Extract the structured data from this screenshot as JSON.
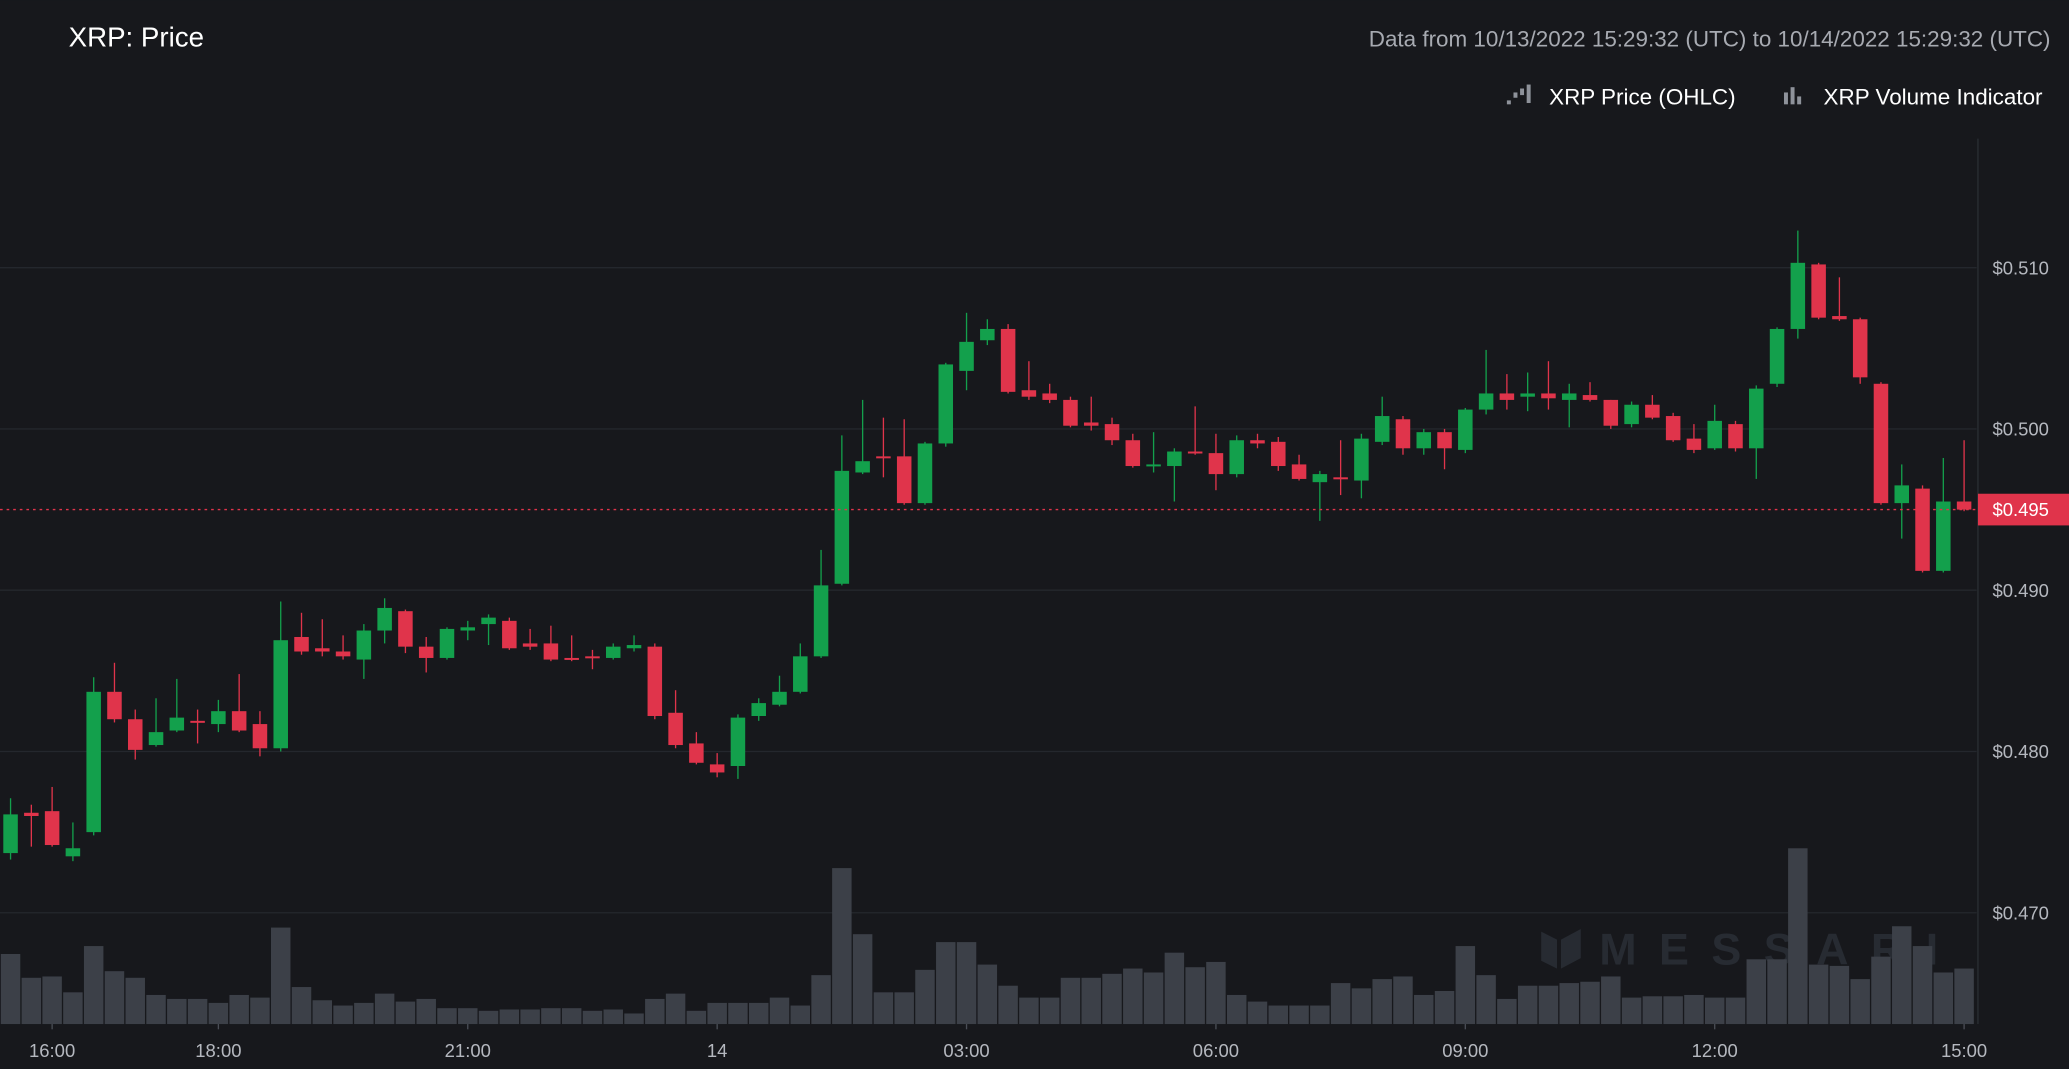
{
  "chart_data": {
    "type": "candlestick",
    "title": "XRP: Price",
    "subtitle": "Data from 10/13/2022 15:29:32 (UTC) to 10/14/2022 15:29:32 (UTC)",
    "watermark": "MESSARI",
    "grid": true,
    "x": [
      "15:30",
      "15:45",
      "16:00",
      "16:15",
      "16:30",
      "16:45",
      "17:00",
      "17:15",
      "17:30",
      "17:45",
      "18:00",
      "18:15",
      "18:30",
      "18:45",
      "19:00",
      "19:15",
      "19:30",
      "19:45",
      "20:00",
      "20:15",
      "20:30",
      "20:45",
      "21:00",
      "21:15",
      "21:30",
      "21:45",
      "22:00",
      "22:15",
      "22:30",
      "22:45",
      "23:00",
      "23:15",
      "23:30",
      "23:45",
      "00:00",
      "00:15",
      "00:30",
      "00:45",
      "01:00",
      "01:15",
      "01:30",
      "01:45",
      "02:00",
      "02:15",
      "02:30",
      "02:45",
      "03:00",
      "03:15",
      "03:30",
      "03:45",
      "04:00",
      "04:15",
      "04:30",
      "04:45",
      "05:00",
      "05:15",
      "05:30",
      "05:45",
      "06:00",
      "06:15",
      "06:30",
      "06:45",
      "07:00",
      "07:15",
      "07:30",
      "07:45",
      "08:00",
      "08:15",
      "08:30",
      "08:45",
      "09:00",
      "09:15",
      "09:30",
      "09:45",
      "10:00",
      "10:15",
      "10:30",
      "10:45",
      "11:00",
      "11:15",
      "11:30",
      "11:45",
      "12:00",
      "12:15",
      "12:30",
      "12:45",
      "13:00",
      "13:15",
      "13:30",
      "13:45",
      "14:00",
      "14:15",
      "14:30",
      "14:45",
      "15:00"
    ],
    "xticks": [
      {
        "value": "16:00",
        "label": "16:00"
      },
      {
        "value": "18:00",
        "label": "18:00"
      },
      {
        "value": "21:00",
        "label": "21:00"
      },
      {
        "value": "00:00",
        "label": "14"
      },
      {
        "value": "03:00",
        "label": "03:00"
      },
      {
        "value": "06:00",
        "label": "06:00"
      },
      {
        "value": "09:00",
        "label": "09:00"
      },
      {
        "value": "12:00",
        "label": "12:00"
      },
      {
        "value": "15:00",
        "label": "15:00"
      }
    ],
    "ylim": [
      0.4631,
      0.518
    ],
    "yticks": [
      {
        "value": 0.47,
        "label": "$0.470"
      },
      {
        "value": 0.48,
        "label": "$0.480"
      },
      {
        "value": 0.49,
        "label": "$0.490"
      },
      {
        "value": 0.5,
        "label": "$0.500"
      },
      {
        "value": 0.51,
        "label": "$0.510"
      }
    ],
    "y2lim": [
      0,
      670
    ],
    "last_price": {
      "value": 0.495,
      "label": "$0.495"
    },
    "series": [
      {
        "name": "XRP Price (OHLC)",
        "up_color": "#13a04c",
        "down_color": "#e0344b",
        "open": [
          0.4737,
          0.4762,
          0.4763,
          0.4735,
          0.475,
          0.4837,
          0.482,
          0.4804,
          0.4813,
          0.4819,
          0.4817,
          0.4825,
          0.4817,
          0.4802,
          0.4871,
          0.4864,
          0.4862,
          0.4857,
          0.4875,
          0.4887,
          0.4865,
          0.4858,
          0.4875,
          0.4879,
          0.4881,
          0.4867,
          0.4867,
          0.4858,
          0.4859,
          0.4858,
          0.4864,
          0.4865,
          0.4824,
          0.4805,
          0.4792,
          0.4791,
          0.4822,
          0.4829,
          0.4837,
          0.4859,
          0.4904,
          0.4973,
          0.4983,
          0.4983,
          0.4954,
          0.4991,
          0.5036,
          0.5055,
          0.5062,
          0.5024,
          0.5022,
          0.5018,
          0.5004,
          0.5003,
          0.4993,
          0.4977,
          0.4977,
          0.4986,
          0.4985,
          0.4972,
          0.4993,
          0.4992,
          0.4978,
          0.4967,
          0.497,
          0.4968,
          0.4992,
          0.5006,
          0.4988,
          0.4998,
          0.4987,
          0.5012,
          0.5022,
          0.502,
          0.5022,
          0.5018,
          0.5021,
          0.5018,
          0.5003,
          0.5015,
          0.5008,
          0.4994,
          0.4988,
          0.5003,
          0.4988,
          0.5028,
          0.5062,
          0.5102,
          0.507,
          0.5068,
          0.5028,
          0.4954,
          0.4963,
          0.4912,
          0.4955
        ],
        "high": [
          0.4771,
          0.4767,
          0.4778,
          0.4756,
          0.4846,
          0.4855,
          0.4826,
          0.4833,
          0.4845,
          0.4826,
          0.4832,
          0.4848,
          0.4825,
          0.4893,
          0.4886,
          0.4882,
          0.4872,
          0.4879,
          0.4895,
          0.4888,
          0.4871,
          0.4877,
          0.4881,
          0.4885,
          0.4883,
          0.4876,
          0.4878,
          0.4872,
          0.4863,
          0.4867,
          0.4872,
          0.4867,
          0.4838,
          0.4812,
          0.4799,
          0.4823,
          0.4833,
          0.4847,
          0.4867,
          0.4925,
          0.4996,
          0.5018,
          0.5007,
          0.5006,
          0.4992,
          0.5041,
          0.5072,
          0.5068,
          0.5065,
          0.5042,
          0.5028,
          0.502,
          0.502,
          0.5007,
          0.4997,
          0.4998,
          0.4988,
          0.5014,
          0.4997,
          0.4996,
          0.4997,
          0.4995,
          0.4984,
          0.4974,
          0.4993,
          0.4997,
          0.502,
          0.5008,
          0.5,
          0.5,
          0.5013,
          0.5049,
          0.5034,
          0.5035,
          0.5042,
          0.5028,
          0.5029,
          0.5018,
          0.5017,
          0.5021,
          0.501,
          0.5003,
          0.5015,
          0.5005,
          0.5027,
          0.5063,
          0.5123,
          0.5103,
          0.5094,
          0.5069,
          0.5029,
          0.4978,
          0.4965,
          0.4982,
          0.4993
        ],
        "low": [
          0.4733,
          0.4741,
          0.4741,
          0.4732,
          0.4748,
          0.4818,
          0.4795,
          0.4803,
          0.4812,
          0.4805,
          0.4812,
          0.4812,
          0.4797,
          0.48,
          0.486,
          0.4859,
          0.4857,
          0.4845,
          0.4867,
          0.4861,
          0.4849,
          0.4857,
          0.4869,
          0.4866,
          0.4863,
          0.4863,
          0.4856,
          0.4856,
          0.4851,
          0.4857,
          0.4862,
          0.482,
          0.4802,
          0.4792,
          0.4784,
          0.4783,
          0.4819,
          0.4828,
          0.4836,
          0.4858,
          0.4903,
          0.4972,
          0.497,
          0.4953,
          0.4953,
          0.4989,
          0.5024,
          0.5052,
          0.5022,
          0.5018,
          0.5016,
          0.5001,
          0.4999,
          0.499,
          0.4976,
          0.4973,
          0.4955,
          0.4984,
          0.4962,
          0.497,
          0.4988,
          0.4974,
          0.4968,
          0.4943,
          0.4959,
          0.4957,
          0.499,
          0.4984,
          0.4984,
          0.4975,
          0.4985,
          0.5009,
          0.5012,
          0.5011,
          0.5012,
          0.5001,
          0.5017,
          0.5,
          0.5001,
          0.5006,
          0.4992,
          0.4985,
          0.4987,
          0.4986,
          0.4969,
          0.5026,
          0.5056,
          0.5068,
          0.5067,
          0.5028,
          0.4953,
          0.4932,
          0.4911,
          0.4911,
          0.4949
        ],
        "close": [
          0.4761,
          0.476,
          0.4742,
          0.474,
          0.4837,
          0.482,
          0.4801,
          0.4812,
          0.4821,
          0.4818,
          0.4825,
          0.4813,
          0.4802,
          0.4869,
          0.4862,
          0.4862,
          0.4859,
          0.4875,
          0.4889,
          0.4865,
          0.4858,
          0.4876,
          0.4877,
          0.4883,
          0.4864,
          0.4865,
          0.4857,
          0.4857,
          0.4858,
          0.4865,
          0.4866,
          0.4822,
          0.4804,
          0.4793,
          0.4787,
          0.4821,
          0.483,
          0.4837,
          0.4859,
          0.4903,
          0.4974,
          0.498,
          0.4982,
          0.4954,
          0.4991,
          0.504,
          0.5054,
          0.5062,
          0.5023,
          0.502,
          0.5018,
          0.5002,
          0.5002,
          0.4993,
          0.4977,
          0.4978,
          0.4986,
          0.4985,
          0.4972,
          0.4993,
          0.4991,
          0.4977,
          0.4969,
          0.4972,
          0.4969,
          0.4994,
          0.5008,
          0.4988,
          0.4998,
          0.4988,
          0.5012,
          0.5022,
          0.5018,
          0.5022,
          0.5019,
          0.5022,
          0.5018,
          0.5002,
          0.5015,
          0.5007,
          0.4993,
          0.4987,
          0.5005,
          0.4988,
          0.5025,
          0.5062,
          0.5103,
          0.5069,
          0.5068,
          0.5032,
          0.4954,
          0.4965,
          0.4912,
          0.4955,
          0.495
        ]
      },
      {
        "name": "XRP Volume Indicator",
        "type": "bar",
        "axis": "y2",
        "color": "#3c4048",
        "values": [
          53,
          35,
          36,
          24,
          59,
          40,
          35,
          22,
          19,
          19,
          16,
          22,
          20,
          73,
          28,
          18,
          14,
          16,
          23,
          17,
          19,
          12,
          12,
          10,
          11,
          11,
          12,
          12,
          10,
          11,
          8,
          19,
          23,
          10,
          16,
          16,
          16,
          20,
          14,
          37,
          118,
          68,
          24,
          24,
          41,
          62,
          62,
          45,
          29,
          20,
          20,
          35,
          35,
          38,
          42,
          39,
          54,
          43,
          47,
          22,
          17,
          14,
          14,
          14,
          31,
          27,
          34,
          36,
          22,
          25,
          59,
          37,
          19,
          29,
          29,
          31,
          32,
          36,
          20,
          21,
          21,
          22,
          20,
          20,
          49,
          49,
          133,
          45,
          44,
          34,
          51,
          74,
          59,
          39,
          42
        ]
      }
    ]
  }
}
